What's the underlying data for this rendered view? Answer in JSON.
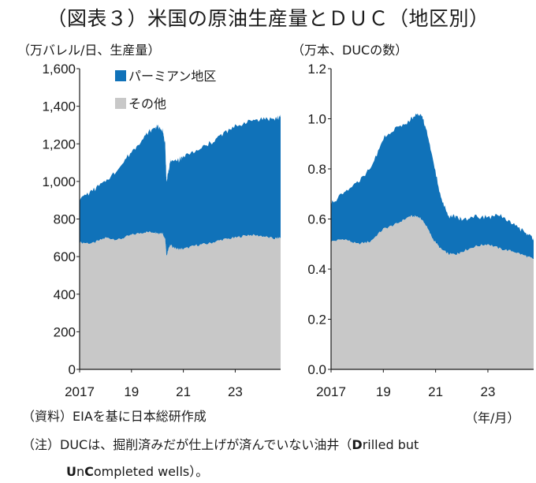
{
  "title": "（図表３）米国の原油生産量とＤＵＣ（地区別）",
  "colors": {
    "permian": "#1072b9",
    "other": "#c8c8c8",
    "axis": "#1a1a1a"
  },
  "chart_data": [
    {
      "type": "area",
      "stacked": true,
      "unit_label": "（万バレル/日、生産量）",
      "ylim": [
        0,
        1600
      ],
      "yticks": [
        "0",
        "200",
        "400",
        "600",
        "800",
        "1,000",
        "1,200",
        "1,400",
        "1,600"
      ],
      "xlim": [
        2017.0,
        2024.75
      ],
      "xticks": [
        {
          "x": 2017,
          "label": "2017"
        },
        {
          "x": 2019,
          "label": "19"
        },
        {
          "x": 2021,
          "label": "21"
        },
        {
          "x": 2023,
          "label": "23"
        }
      ],
      "legend": [
        "パーミアン地区",
        "その他"
      ],
      "legend_position": "top-left",
      "x": [
        2017.0,
        2017.5,
        2018.0,
        2018.5,
        2019.0,
        2019.5,
        2019.9,
        2020.0,
        2020.2,
        2020.3,
        2020.35,
        2020.45,
        2020.5,
        2020.75,
        2021.0,
        2021.5,
        2022.0,
        2022.5,
        2023.0,
        2023.5,
        2024.0,
        2024.5,
        2024.75
      ],
      "series": [
        {
          "name": "その他",
          "values": [
            675,
            670,
            700,
            690,
            715,
            730,
            730,
            725,
            725,
            690,
            600,
            650,
            660,
            640,
            640,
            660,
            670,
            690,
            700,
            715,
            710,
            695,
            700
          ]
        },
        {
          "name": "パーミアン地区",
          "values": [
            235,
            280,
            300,
            380,
            440,
            510,
            560,
            570,
            555,
            500,
            400,
            420,
            450,
            470,
            490,
            500,
            530,
            560,
            590,
            605,
            625,
            635,
            645
          ]
        }
      ]
    },
    {
      "type": "area",
      "stacked": true,
      "unit_label": "（万本、DUCの数）",
      "ylim": [
        0,
        1.2
      ],
      "yticks": [
        "0.0",
        "0.2",
        "0.4",
        "0.6",
        "0.8",
        "1.0",
        "1.2"
      ],
      "xlim": [
        2017.0,
        2024.75
      ],
      "xticks": [
        {
          "x": 2017,
          "label": "2017"
        },
        {
          "x": 2019,
          "label": "19"
        },
        {
          "x": 2021,
          "label": "21"
        },
        {
          "x": 2023,
          "label": "23"
        }
      ],
      "x_unit_label": "（年/月）",
      "x": [
        2017.0,
        2017.5,
        2018.0,
        2018.5,
        2019.0,
        2019.5,
        2020.0,
        2020.3,
        2020.45,
        2020.6,
        2020.9,
        2021.2,
        2021.5,
        2021.8,
        2022.0,
        2022.5,
        2023.0,
        2023.5,
        2024.0,
        2024.5,
        2024.75
      ],
      "series": [
        {
          "name": "その他",
          "values": [
            0.51,
            0.52,
            0.5,
            0.51,
            0.56,
            0.58,
            0.61,
            0.61,
            0.6,
            0.58,
            0.52,
            0.48,
            0.46,
            0.46,
            0.47,
            0.49,
            0.5,
            0.48,
            0.47,
            0.45,
            0.44
          ]
        },
        {
          "name": "パーミアン地区",
          "values": [
            0.15,
            0.19,
            0.24,
            0.29,
            0.36,
            0.38,
            0.38,
            0.41,
            0.42,
            0.39,
            0.32,
            0.2,
            0.15,
            0.15,
            0.13,
            0.12,
            0.11,
            0.13,
            0.11,
            0.09,
            0.08
          ]
        }
      ]
    }
  ],
  "notes": {
    "source": "（資料）EIAを基に日本総研作成",
    "note_line1": "（注）DUCは、掘削済みだが仕上げが済んでいない油井（",
    "note_b1": "D",
    "note_t1": "rilled but",
    "note_b2": "U",
    "note_t2": "n",
    "note_b3": "C",
    "note_t3": "ompleted wells）。"
  }
}
